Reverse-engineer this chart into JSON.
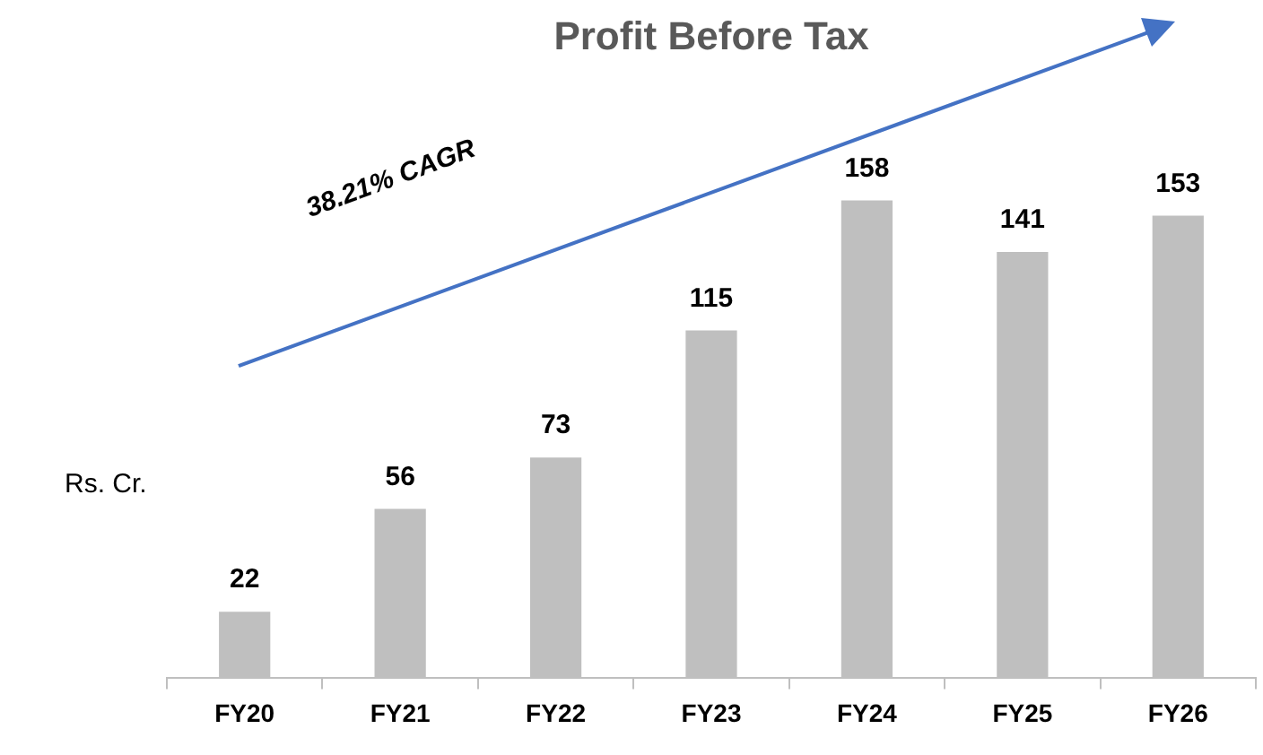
{
  "chart_data": {
    "type": "bar",
    "title": "Profit Before Tax",
    "ylabel": "Rs. Cr.",
    "categories": [
      "FY20",
      "FY21",
      "FY22",
      "FY23",
      "FY24",
      "FY25",
      "FY26"
    ],
    "values": [
      22,
      56,
      73,
      115,
      158,
      141,
      153
    ],
    "color": "#bfbfbf",
    "tick_labels": "x",
    "data_labels": true,
    "grid": false,
    "legend": false,
    "annotations": [
      "38.21% CAGR"
    ]
  }
}
